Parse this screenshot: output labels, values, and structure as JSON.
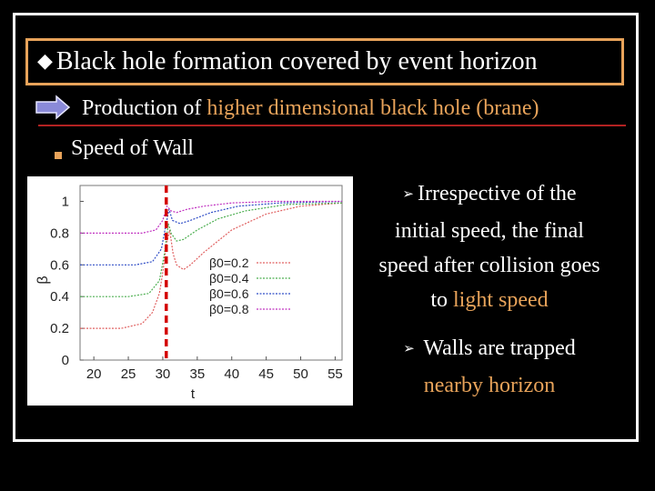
{
  "title": "Black hole formation covered by event horizon",
  "subtitle": {
    "prefix": "Production of ",
    "highlight": "higher dimensional black hole (brane)"
  },
  "bullet": "Speed of Wall",
  "point1": {
    "line1": "Irrespective of the",
    "line2": "initial speed, the final",
    "line3": "speed after collision goes",
    "line4_prefix": "to ",
    "line4_highlight": "light speed"
  },
  "point2": {
    "line1": "Walls are trapped",
    "line2": "nearby horizon"
  },
  "colors": {
    "accent": "#e8a35a",
    "separator": "#b22222",
    "dashed_line": "#d40000"
  },
  "chart_data": {
    "type": "line",
    "xlabel": "t",
    "ylabel": "β",
    "xlim": [
      18,
      56
    ],
    "ylim": [
      0,
      1.1
    ],
    "xticks": [
      20,
      25,
      30,
      35,
      40,
      45,
      50,
      55
    ],
    "yticks": [
      0,
      0.2,
      0.4,
      0.6,
      0.8,
      1
    ],
    "ytick_labels": [
      "0",
      "0.2",
      "0.4",
      "0.6",
      "0.8",
      "1"
    ],
    "vline_x": 30.5,
    "legend_position": "center",
    "series": [
      {
        "name": "β0=0.2",
        "color": "#e06060",
        "x": [
          18,
          24,
          27,
          28.5,
          29.5,
          30,
          30.5,
          31,
          31.5,
          32,
          33,
          34,
          36,
          40,
          45,
          50,
          56
        ],
        "y": [
          0.2,
          0.2,
          0.23,
          0.3,
          0.42,
          0.55,
          0.72,
          0.82,
          0.67,
          0.6,
          0.57,
          0.6,
          0.68,
          0.82,
          0.92,
          0.97,
          0.99
        ]
      },
      {
        "name": "β0=0.4",
        "color": "#4caf50",
        "x": [
          18,
          25,
          28,
          29.5,
          30.2,
          30.8,
          31.2,
          32,
          33,
          35,
          38,
          42,
          48,
          56
        ],
        "y": [
          0.4,
          0.4,
          0.42,
          0.5,
          0.66,
          0.86,
          0.8,
          0.75,
          0.76,
          0.82,
          0.89,
          0.94,
          0.98,
          0.99
        ]
      },
      {
        "name": "β0=0.6",
        "color": "#2e4cc6",
        "x": [
          18,
          26,
          28.5,
          29.8,
          30.4,
          30.9,
          31.4,
          32.5,
          34,
          37,
          41,
          47,
          56
        ],
        "y": [
          0.6,
          0.6,
          0.62,
          0.7,
          0.84,
          0.95,
          0.88,
          0.86,
          0.88,
          0.93,
          0.97,
          0.99,
          1.0
        ]
      },
      {
        "name": "β0=0.8",
        "color": "#c030c0",
        "x": [
          18,
          27,
          29,
          30,
          30.6,
          31.2,
          32,
          33.5,
          36,
          40,
          46,
          56
        ],
        "y": [
          0.8,
          0.8,
          0.82,
          0.88,
          0.97,
          0.94,
          0.93,
          0.95,
          0.97,
          0.99,
          1.0,
          1.0
        ]
      }
    ]
  }
}
